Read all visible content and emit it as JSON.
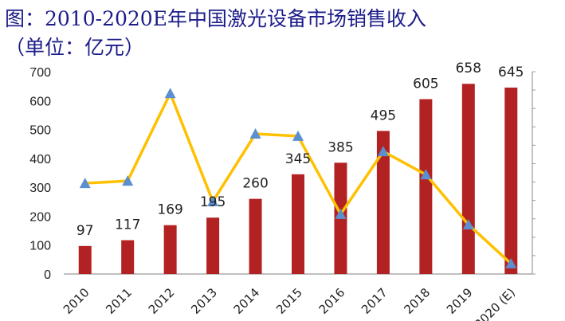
{
  "title_line1": "图：2010-2020E年中国激光设备市场销售收入",
  "title_line2": "（单位：亿元）",
  "chart_data": {
    "type": "bar",
    "categories": [
      "2010",
      "2011",
      "2012",
      "2013",
      "2014",
      "2015",
      "2016",
      "2017",
      "2018",
      "2019",
      "2020 (E)"
    ],
    "series": [
      {
        "type": "bar",
        "values": [
          97,
          117,
          169,
          195,
          260,
          345,
          385,
          495,
          605,
          658,
          645
        ],
        "color": "#b22222"
      },
      {
        "type": "line",
        "axis": "secondary",
        "values": [
          314,
          322,
          625,
          251,
          485,
          477,
          207,
          424,
          344,
          171,
          36
        ],
        "color": "#ffc000",
        "marker": "triangle",
        "marker_color": "#5b8fd0"
      }
    ],
    "ylim": [
      0,
      700
    ],
    "yticks": [
      0,
      100,
      200,
      300,
      400,
      500,
      600,
      700
    ],
    "secondary_axis": {
      "ticks": 12,
      "labels_visible": false
    },
    "grid": false,
    "legend": "none"
  }
}
